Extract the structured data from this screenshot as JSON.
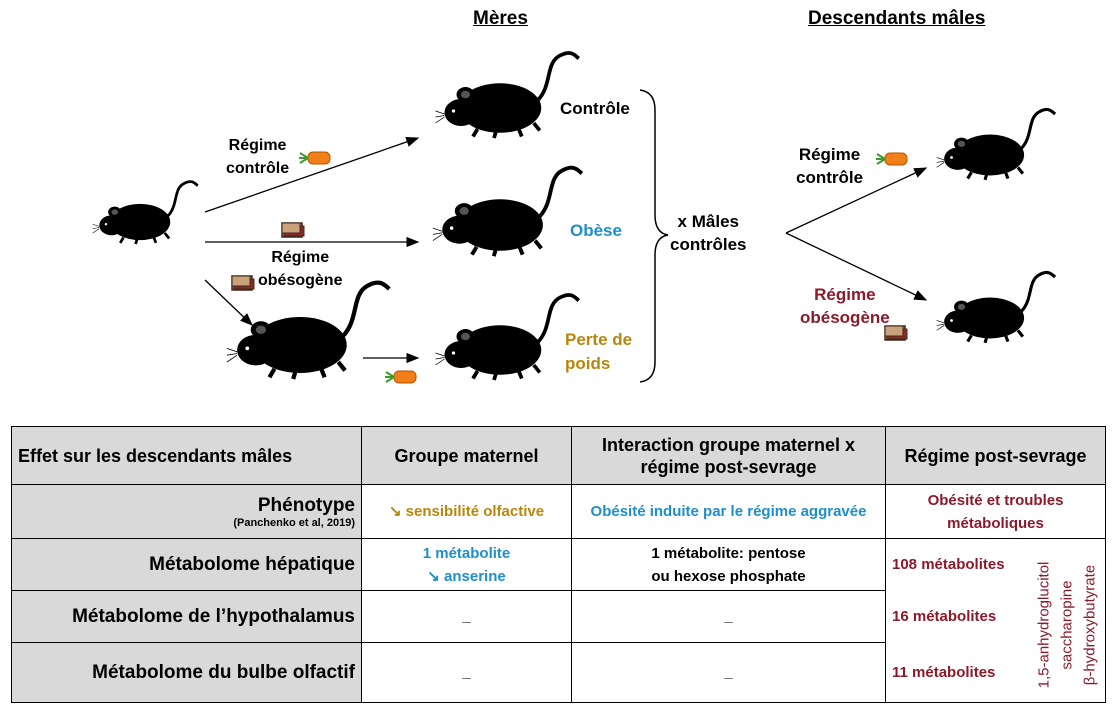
{
  "headers": {
    "meres": "Mères",
    "descendants": "Descendants mâles"
  },
  "labels": {
    "regime_controle_1": "Régime\ncontrôle",
    "regime_obesogene_1": "Régime\nobésogène",
    "controle": "Contrôle",
    "obese": "Obèse",
    "perte_de_poids": "Perte de\npoids",
    "x_males_controles": "x Mâles\ncontrôles",
    "regime_controle_2": "Régime\ncontrôle",
    "regime_obesogene_2": "Régime\nobésogène"
  },
  "colors": {
    "blue": "#1f8fc9",
    "gold": "#b8860b",
    "red": "#8b1a2b",
    "header_bg": "#d9d9d9"
  },
  "icons": [
    "mouse-icon",
    "carrot-icon",
    "food-pellet-icon",
    "arrow-icon",
    "brace-icon"
  ],
  "table": {
    "col_headers": [
      "Effet sur les descendants mâles",
      "Groupe maternel",
      "Interaction groupe maternel x régime post-sevrage",
      "Régime post-sevrage"
    ],
    "rows": [
      {
        "label": "Phénotype",
        "sublabel": "(Panchenko et al, 2019)",
        "maternal": "↘ sensibilité olfactive",
        "interaction": "Obésité induite par le régime aggravée",
        "post": "Obésité et troubles métaboliques"
      },
      {
        "label": "Métabolome hépatique",
        "maternal_1": "1 métabolite",
        "maternal_2": "↘ anserine",
        "interaction_1": "1 métabolite: pentose",
        "interaction_2": "ou hexose phosphate",
        "post": "108 métabolites"
      },
      {
        "label": "Métabolome de l’hypothalamus",
        "maternal": "_",
        "interaction": "_",
        "post": "16 métabolites"
      },
      {
        "label": "Métabolome du bulbe olfactif",
        "maternal": "_",
        "interaction": "_",
        "post": "11 métabolites"
      }
    ],
    "metabolites_list": "1,5-anhydroglucitol\nsaccharopine\nβ-hydroxybutyrate"
  }
}
